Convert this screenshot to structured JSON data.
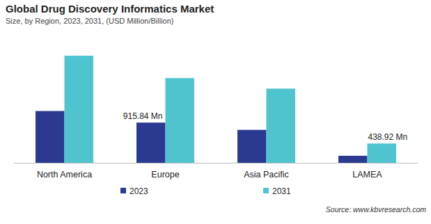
{
  "chart_data": {
    "type": "bar",
    "title": "Global Drug Discovery Informatics Market",
    "subtitle": "Size, by Region, 2023, 2031, (USD Million/Billion)",
    "source": "Source: www.kbvresearch.com",
    "categories": [
      "North America",
      "Europe",
      "Asia Pacific",
      "LAMEA"
    ],
    "series": [
      {
        "name": "2023",
        "color": "#2b3990",
        "values": [
          1180,
          915.84,
          750,
          160
        ],
        "value_labels": [
          null,
          "915.84 Mn",
          null,
          null
        ]
      },
      {
        "name": "2031",
        "color": "#4fc4cf",
        "values": [
          2440,
          1930,
          1690,
          438.92
        ],
        "value_labels": [
          null,
          null,
          null,
          "438.92 Mn"
        ]
      }
    ],
    "ylim": [
      0,
      2600
    ],
    "data_labels": true,
    "legend": "bottom",
    "tick_labels": "x",
    "grid": false
  }
}
